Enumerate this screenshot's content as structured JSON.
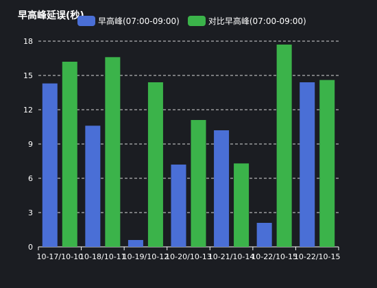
{
  "chart_data": {
    "type": "bar",
    "title": "早高峰延误(秒)",
    "categories": [
      "10-17/10-10",
      "10-18/10-11",
      "10-19/10-12",
      "10-20/10-13",
      "10-21/10-14",
      "10-22/10-15",
      "10-22/10-15"
    ],
    "series": [
      {
        "name": "早高峰(07:00-09:00)",
        "color": "#4a6fd6",
        "values": [
          14.3,
          10.6,
          0.6,
          7.2,
          10.2,
          2.1,
          14.4
        ]
      },
      {
        "name": "对比早高峰(07:00-09:00)",
        "color": "#3bb34a",
        "values": [
          16.2,
          16.6,
          14.4,
          11.1,
          7.3,
          17.7,
          14.6
        ]
      }
    ],
    "ylim": [
      0,
      18
    ],
    "yticks": [
      0,
      3,
      6,
      9,
      12,
      15,
      18
    ],
    "grid": "dashed horizontal",
    "legend": "top-center",
    "xlabel": "",
    "ylabel": ""
  }
}
